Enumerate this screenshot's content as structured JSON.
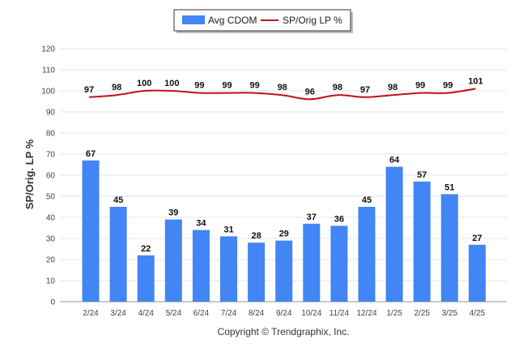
{
  "chart_data": {
    "type": "bar",
    "categories": [
      "2/24",
      "3/24",
      "4/24",
      "5/24",
      "6/24",
      "7/24",
      "8/24",
      "9/24",
      "10/24",
      "11/24",
      "12/24",
      "1/25",
      "2/25",
      "3/25",
      "4/25"
    ],
    "series": [
      {
        "name": "Avg CDOM",
        "type": "bar",
        "color": "#4285f4",
        "values": [
          67,
          45,
          22,
          39,
          34,
          31,
          28,
          29,
          37,
          36,
          45,
          64,
          57,
          51,
          27
        ]
      },
      {
        "name": "SP/Orig LP %",
        "type": "line",
        "color": "#c0101a",
        "values": [
          97,
          98,
          100,
          100,
          99,
          99,
          99,
          98,
          96,
          98,
          97,
          98,
          99,
          99,
          101
        ]
      }
    ],
    "ylabel": "SP/Orig. LP %",
    "ylim": [
      0,
      120
    ],
    "yticks": [
      0,
      10,
      20,
      30,
      40,
      50,
      60,
      70,
      80,
      90,
      100,
      110,
      120
    ],
    "grid": true,
    "legend_position": "top-center"
  },
  "footer": {
    "copyright": "Copyright © Trendgraphix, Inc."
  }
}
